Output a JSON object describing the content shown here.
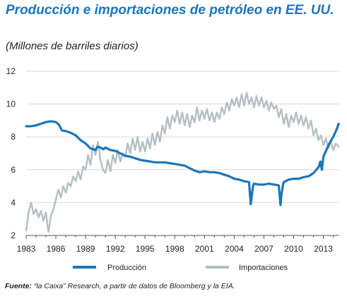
{
  "header": {
    "title": "Producción e importaciones de petróleo en EE. UU.",
    "subtitle": "(Millones de barriles diarios)"
  },
  "footer": {
    "source_label": "Fuente:",
    "source_text": " “la Caixa” Research, a partir de datos de Bloomberg y la EIA."
  },
  "colors": {
    "produccion": "#1c75b8",
    "importaciones": "#b4bfc4",
    "grid": "#d9d9d9",
    "axis": "#555555"
  },
  "chart_data": {
    "type": "line",
    "title": "Producción e importaciones de petróleo en EE. UU.",
    "ylabel": "(Millones de barriles diarios)",
    "xlim": [
      1983,
      2014.6
    ],
    "ylim": [
      2,
      12
    ],
    "x_ticks": [
      1983,
      1986,
      1989,
      1992,
      1995,
      1998,
      2001,
      2004,
      2007,
      2010,
      2013
    ],
    "y_ticks": [
      2,
      4,
      6,
      8,
      10,
      12
    ],
    "grid": "horizontal",
    "legend": "bottom",
    "series": [
      {
        "name": "Producción",
        "color": "#1c75b8",
        "x": [
          1983.0,
          1983.5,
          1984.0,
          1984.5,
          1985.0,
          1985.5,
          1986.0,
          1986.3,
          1986.6,
          1987.0,
          1987.5,
          1988.0,
          1988.5,
          1989.0,
          1989.5,
          1990.0,
          1990.2,
          1990.5,
          1990.8,
          1991.0,
          1991.5,
          1992.0,
          1992.5,
          1993.0,
          1993.5,
          1994.0,
          1994.5,
          1995.0,
          1995.5,
          1996.0,
          1996.5,
          1997.0,
          1997.5,
          1998.0,
          1998.5,
          1999.0,
          1999.5,
          2000.0,
          2000.5,
          2001.0,
          2001.5,
          2002.0,
          2002.5,
          2003.0,
          2003.5,
          2004.0,
          2004.5,
          2005.0,
          2005.5,
          2005.67,
          2005.75,
          2005.9,
          2006.0,
          2006.5,
          2007.0,
          2007.5,
          2008.0,
          2008.5,
          2008.67,
          2008.75,
          2008.9,
          2009.0,
          2009.5,
          2010.0,
          2010.5,
          2011.0,
          2011.5,
          2012.0,
          2012.5,
          2012.7,
          2012.85,
          2013.0,
          2013.3,
          2013.6,
          2014.0,
          2014.3,
          2014.55
        ],
        "y": [
          8.65,
          8.65,
          8.7,
          8.8,
          8.9,
          8.95,
          8.9,
          8.75,
          8.4,
          8.35,
          8.25,
          8.1,
          7.8,
          7.6,
          7.3,
          7.2,
          7.4,
          7.35,
          7.25,
          7.35,
          7.2,
          7.15,
          7.0,
          6.85,
          6.8,
          6.7,
          6.6,
          6.55,
          6.5,
          6.45,
          6.45,
          6.45,
          6.4,
          6.35,
          6.3,
          6.25,
          6.1,
          5.95,
          5.85,
          5.9,
          5.85,
          5.85,
          5.8,
          5.7,
          5.6,
          5.45,
          5.4,
          5.3,
          5.25,
          3.9,
          4.3,
          5.0,
          5.15,
          5.1,
          5.1,
          5.15,
          5.1,
          5.05,
          3.85,
          4.4,
          5.0,
          5.25,
          5.4,
          5.45,
          5.45,
          5.55,
          5.6,
          5.8,
          6.15,
          6.5,
          6.0,
          6.8,
          7.2,
          7.6,
          8.0,
          8.4,
          8.8
        ]
      },
      {
        "name": "Importaciones",
        "color": "#b4bfc4",
        "x": [
          1983.0,
          1983.25,
          1983.5,
          1983.75,
          1984.0,
          1984.25,
          1984.5,
          1984.75,
          1985.0,
          1985.25,
          1985.5,
          1985.75,
          1986.0,
          1986.25,
          1986.5,
          1986.75,
          1987.0,
          1987.25,
          1987.5,
          1987.75,
          1988.0,
          1988.25,
          1988.5,
          1988.75,
          1989.0,
          1989.25,
          1989.5,
          1989.75,
          1990.0,
          1990.25,
          1990.5,
          1990.75,
          1991.0,
          1991.25,
          1991.5,
          1991.75,
          1992.0,
          1992.25,
          1992.5,
          1992.75,
          1993.0,
          1993.25,
          1993.5,
          1993.75,
          1994.0,
          1994.25,
          1994.5,
          1994.75,
          1995.0,
          1995.25,
          1995.5,
          1995.75,
          1996.0,
          1996.25,
          1996.5,
          1996.75,
          1997.0,
          1997.25,
          1997.5,
          1997.75,
          1998.0,
          1998.25,
          1998.5,
          1998.75,
          1999.0,
          1999.25,
          1999.5,
          1999.75,
          2000.0,
          2000.25,
          2000.5,
          2000.75,
          2001.0,
          2001.25,
          2001.5,
          2001.75,
          2002.0,
          2002.25,
          2002.5,
          2002.75,
          2003.0,
          2003.25,
          2003.5,
          2003.75,
          2004.0,
          2004.25,
          2004.5,
          2004.75,
          2005.0,
          2005.25,
          2005.5,
          2005.75,
          2006.0,
          2006.25,
          2006.5,
          2006.75,
          2007.0,
          2007.25,
          2007.5,
          2007.75,
          2008.0,
          2008.25,
          2008.5,
          2008.75,
          2009.0,
          2009.25,
          2009.5,
          2009.75,
          2010.0,
          2010.25,
          2010.5,
          2010.75,
          2011.0,
          2011.25,
          2011.5,
          2011.75,
          2012.0,
          2012.25,
          2012.5,
          2012.75,
          2013.0,
          2013.25,
          2013.5,
          2013.75,
          2014.0,
          2014.25,
          2014.55
        ],
        "y": [
          2.3,
          3.4,
          4.0,
          3.3,
          3.6,
          3.1,
          3.5,
          2.9,
          3.4,
          2.2,
          3.2,
          3.6,
          4.2,
          4.8,
          4.3,
          5.0,
          4.6,
          5.2,
          5.0,
          5.6,
          5.3,
          5.9,
          5.4,
          6.2,
          6.0,
          6.9,
          6.3,
          7.5,
          6.9,
          7.7,
          6.6,
          6.0,
          5.8,
          6.6,
          5.9,
          6.9,
          6.4,
          7.2,
          6.5,
          7.0,
          6.8,
          7.6,
          7.0,
          7.9,
          7.2,
          8.0,
          7.1,
          7.7,
          7.1,
          7.9,
          7.3,
          8.2,
          7.5,
          8.3,
          7.7,
          8.7,
          8.2,
          9.2,
          8.5,
          9.3,
          8.9,
          9.6,
          8.8,
          9.5,
          8.7,
          9.4,
          8.6,
          9.3,
          8.9,
          9.8,
          9.0,
          9.6,
          9.1,
          9.7,
          9.0,
          9.5,
          8.9,
          9.5,
          9.1,
          9.8,
          9.4,
          10.1,
          9.6,
          10.3,
          9.9,
          10.4,
          9.8,
          10.6,
          9.9,
          10.7,
          10.0,
          10.4,
          9.8,
          10.5,
          9.9,
          10.4,
          9.8,
          10.2,
          9.6,
          10.1,
          9.7,
          9.9,
          9.2,
          9.7,
          8.8,
          9.4,
          8.6,
          9.3,
          8.9,
          9.5,
          8.8,
          9.3,
          8.7,
          9.2,
          8.5,
          9.0,
          8.1,
          8.5,
          7.8,
          8.1,
          7.5,
          7.9,
          7.3,
          7.7,
          7.2,
          7.6,
          7.4
        ]
      }
    ]
  }
}
